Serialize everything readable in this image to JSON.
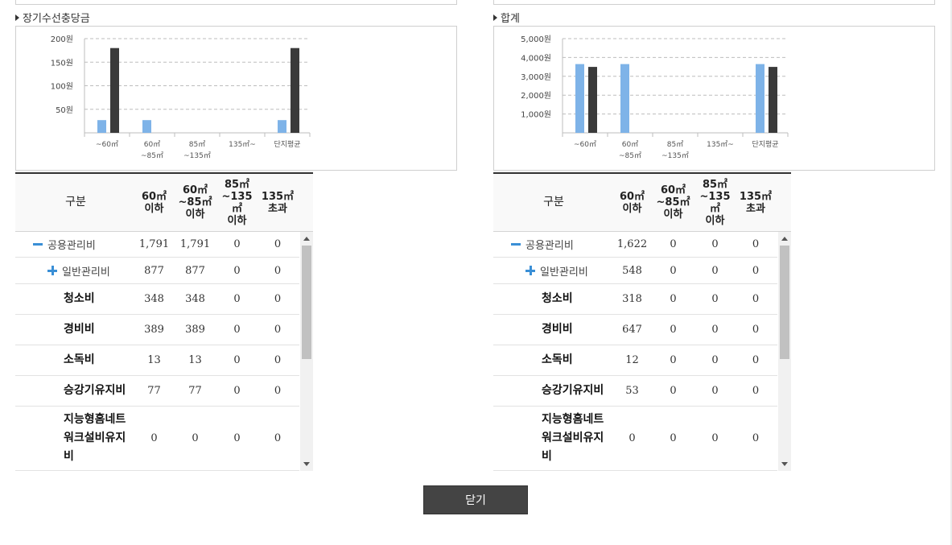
{
  "close_label": "닫기",
  "table_header": {
    "col0": "구분",
    "col1": [
      "60㎡",
      "이하"
    ],
    "col2": [
      "60㎡",
      "~85㎡",
      "이하"
    ],
    "col3": [
      "85㎡",
      "~135㎡",
      "이하"
    ],
    "col4": [
      "135㎡",
      "초과"
    ]
  },
  "panels": [
    {
      "title": "장기수선충당금",
      "chart_data": {
        "type": "bar",
        "categories": [
          [
            "~60㎡"
          ],
          [
            "60㎡",
            "~85㎡"
          ],
          [
            "85㎡",
            "~135㎡"
          ],
          [
            "135㎡~"
          ],
          [
            "단지평균"
          ]
        ],
        "series": [
          {
            "color": "#7eb3e8",
            "values": [
              27,
              27,
              0,
              0,
              27
            ]
          },
          {
            "color": "#3a3a3a",
            "values": [
              180,
              0,
              0,
              0,
              180
            ]
          }
        ],
        "ylim": [
          0,
          200
        ],
        "yticks": [
          50,
          100,
          150,
          200
        ],
        "ytick_labels": [
          "50원",
          "100원",
          "150원",
          "200원"
        ],
        "grid": true
      },
      "rows": [
        {
          "level": 0,
          "icon": "minus",
          "name": "공용관리비",
          "values": [
            "1,791",
            "1,791",
            "0",
            "0"
          ]
        },
        {
          "level": 1,
          "icon": "plus",
          "name": "일반관리비",
          "values": [
            "877",
            "877",
            "0",
            "0"
          ]
        },
        {
          "level": 2,
          "name": "청소비",
          "values": [
            "348",
            "348",
            "0",
            "0"
          ]
        },
        {
          "level": 2,
          "name": "경비비",
          "values": [
            "389",
            "389",
            "0",
            "0"
          ]
        },
        {
          "level": 2,
          "name": "소독비",
          "values": [
            "13",
            "13",
            "0",
            "0"
          ]
        },
        {
          "level": 2,
          "name": "승강기유지비",
          "values": [
            "77",
            "77",
            "0",
            "0"
          ]
        },
        {
          "level": 2,
          "name": "지능형홈네트워크설비유지비",
          "values": [
            "0",
            "0",
            "0",
            "0"
          ]
        }
      ]
    },
    {
      "title": "합계",
      "chart_data": {
        "type": "bar",
        "categories": [
          [
            "~60㎡"
          ],
          [
            "60㎡",
            "~85㎡"
          ],
          [
            "85㎡",
            "~135㎡"
          ],
          [
            "135㎡~"
          ],
          [
            "단지평균"
          ]
        ],
        "series": [
          {
            "color": "#7eb3e8",
            "values": [
              3650,
              3650,
              0,
              0,
              3650
            ]
          },
          {
            "color": "#3a3a3a",
            "values": [
              3500,
              0,
              0,
              0,
              3500
            ]
          }
        ],
        "ylim": [
          0,
          5000
        ],
        "yticks": [
          1000,
          2000,
          3000,
          4000,
          5000
        ],
        "ytick_labels": [
          "1,000원",
          "2,000원",
          "3,000원",
          "4,000원",
          "5,000원"
        ],
        "grid": true
      },
      "rows": [
        {
          "level": 0,
          "icon": "minus",
          "name": "공용관리비",
          "values": [
            "1,622",
            "0",
            "0",
            "0"
          ]
        },
        {
          "level": 1,
          "icon": "plus",
          "name": "일반관리비",
          "values": [
            "548",
            "0",
            "0",
            "0"
          ]
        },
        {
          "level": 2,
          "name": "청소비",
          "values": [
            "318",
            "0",
            "0",
            "0"
          ]
        },
        {
          "level": 2,
          "name": "경비비",
          "values": [
            "647",
            "0",
            "0",
            "0"
          ]
        },
        {
          "level": 2,
          "name": "소독비",
          "values": [
            "12",
            "0",
            "0",
            "0"
          ]
        },
        {
          "level": 2,
          "name": "승강기유지비",
          "values": [
            "53",
            "0",
            "0",
            "0"
          ]
        },
        {
          "level": 2,
          "name": "지능형홈네트워크설비유지비",
          "values": [
            "0",
            "0",
            "0",
            "0"
          ]
        }
      ]
    }
  ]
}
